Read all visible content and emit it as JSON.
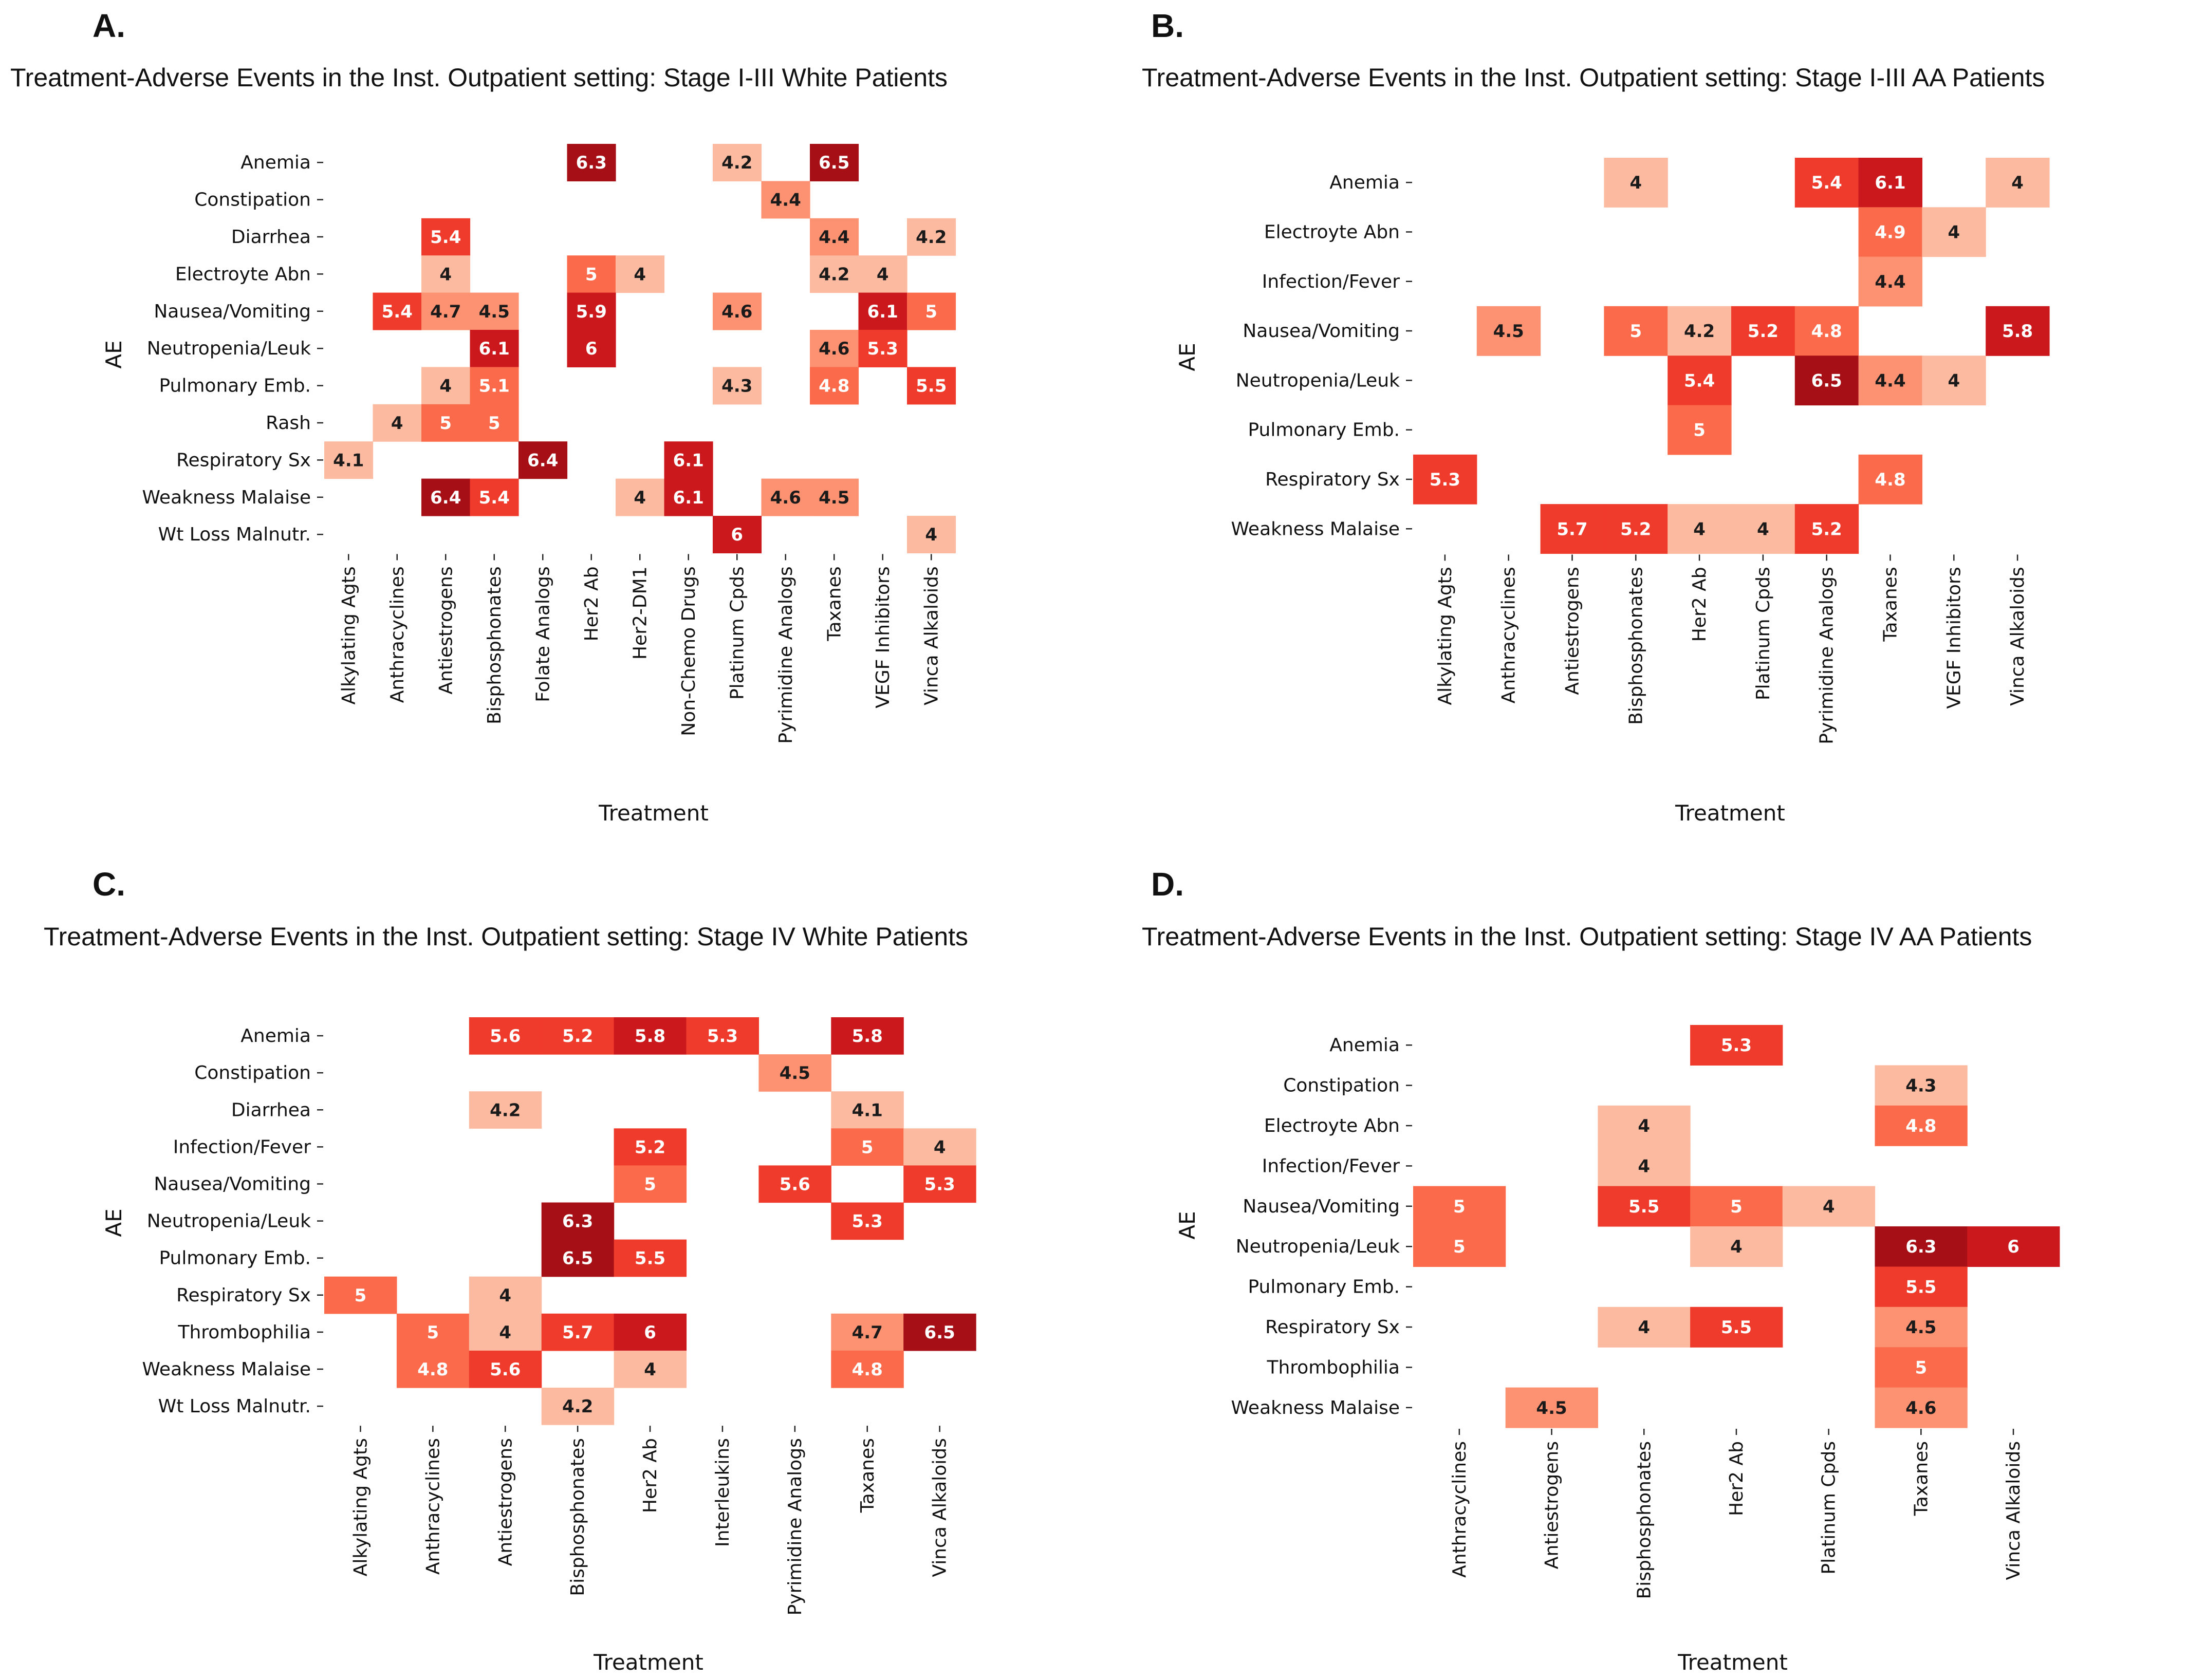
{
  "figure": {
    "colors": {
      "scale": [
        "#fcbba1",
        "#fc9272",
        "#fb6a4a",
        "#ef3b2c",
        "#cb181d",
        "#a50f15"
      ],
      "light_text": "#ffffff",
      "dark_text": "#1a1a1a"
    }
  },
  "chart_data": [
    {
      "panel": "A.",
      "type": "heatmap",
      "title": "Treatment-Adverse Events in the Inst. Outpatient setting: Stage I-III White Patients",
      "xlabel": "Treatment",
      "ylabel": "AE",
      "rows": [
        "Anemia",
        "Constipation",
        "Diarrhea",
        "Electroyte Abn",
        "Nausea/Vomiting",
        "Neutropenia/Leuk",
        "Pulmonary Emb.",
        "Rash",
        "Respiratory Sx",
        "Weakness Malaise",
        "Wt Loss Malnutr."
      ],
      "cols": [
        "Alkylating Agts",
        "Anthracyclines",
        "Antiestrogens",
        "Bisphosphonates",
        "Folate Analogs",
        "Her2 Ab",
        "Her2-DM1",
        "Non-Chemo Drugs",
        "Platinum Cpds",
        "Pyrimidine Analogs",
        "Taxanes",
        "VEGF Inhibitors",
        "Vinca Alkaloids"
      ],
      "values": [
        [
          null,
          null,
          null,
          null,
          null,
          6.3,
          null,
          null,
          4.2,
          null,
          6.5,
          null,
          null
        ],
        [
          null,
          null,
          null,
          null,
          null,
          null,
          null,
          null,
          null,
          4.4,
          null,
          null,
          null
        ],
        [
          null,
          null,
          5.4,
          null,
          null,
          null,
          null,
          null,
          null,
          null,
          4.4,
          null,
          4.2
        ],
        [
          null,
          null,
          4,
          null,
          null,
          5,
          4,
          null,
          null,
          null,
          4.2,
          4,
          null
        ],
        [
          null,
          5.4,
          4.7,
          4.5,
          null,
          5.9,
          null,
          null,
          4.6,
          null,
          null,
          6.1,
          5
        ],
        [
          null,
          null,
          null,
          6.1,
          null,
          6,
          null,
          null,
          null,
          null,
          4.6,
          5.3,
          null
        ],
        [
          null,
          null,
          4,
          5.1,
          null,
          null,
          null,
          null,
          4.3,
          null,
          4.8,
          null,
          5.5
        ],
        [
          null,
          4,
          5,
          5,
          null,
          null,
          null,
          null,
          null,
          null,
          null,
          null,
          null
        ],
        [
          4.1,
          null,
          null,
          null,
          6.4,
          null,
          null,
          6.1,
          null,
          null,
          null,
          null,
          null
        ],
        [
          null,
          null,
          6.4,
          5.4,
          null,
          null,
          4,
          6.1,
          null,
          4.6,
          4.5,
          null,
          null
        ],
        [
          null,
          null,
          null,
          null,
          null,
          null,
          null,
          null,
          6,
          null,
          null,
          null,
          4
        ]
      ]
    },
    {
      "panel": "B.",
      "type": "heatmap",
      "title": "Treatment-Adverse Events in the Inst. Outpatient setting: Stage I-III AA Patients",
      "xlabel": "Treatment",
      "ylabel": "AE",
      "rows": [
        "Anemia",
        "Electroyte Abn",
        "Infection/Fever",
        "Nausea/Vomiting",
        "Neutropenia/Leuk",
        "Pulmonary Emb.",
        "Respiratory Sx",
        "Weakness Malaise"
      ],
      "cols": [
        "Alkylating Agts",
        "Anthracyclines",
        "Antiestrogens",
        "Bisphosphonates",
        "Her2 Ab",
        "Platinum Cpds",
        "Pyrimidine Analogs",
        "Taxanes",
        "VEGF Inhibitors",
        "Vinca Alkaloids"
      ],
      "values": [
        [
          null,
          null,
          null,
          4,
          null,
          null,
          5.4,
          6.1,
          null,
          4
        ],
        [
          null,
          null,
          null,
          null,
          null,
          null,
          null,
          4.9,
          4,
          null
        ],
        [
          null,
          null,
          null,
          null,
          null,
          null,
          null,
          4.4,
          null,
          null
        ],
        [
          null,
          4.5,
          null,
          5,
          4.2,
          5.2,
          4.8,
          null,
          null,
          5.8
        ],
        [
          null,
          null,
          null,
          null,
          5.4,
          null,
          6.5,
          4.4,
          4,
          null
        ],
        [
          null,
          null,
          null,
          null,
          5,
          null,
          null,
          null,
          null,
          null
        ],
        [
          5.3,
          null,
          null,
          null,
          null,
          null,
          null,
          4.8,
          null,
          null
        ],
        [
          null,
          null,
          5.7,
          5.2,
          4,
          4,
          5.2,
          null,
          null,
          null
        ]
      ]
    },
    {
      "panel": "C.",
      "type": "heatmap",
      "title": "Treatment-Adverse Events in the Inst. Outpatient setting: Stage IV White Patients",
      "xlabel": "Treatment",
      "ylabel": "AE",
      "rows": [
        "Anemia",
        "Constipation",
        "Diarrhea",
        "Infection/Fever",
        "Nausea/Vomiting",
        "Neutropenia/Leuk",
        "Pulmonary Emb.",
        "Respiratory Sx",
        "Thrombophilia",
        "Weakness Malaise",
        "Wt Loss Malnutr."
      ],
      "cols": [
        "Alkylating Agts",
        "Anthracyclines",
        "Antiestrogens",
        "Bisphosphonates",
        "Her2 Ab",
        "Interleukins",
        "Pyrimidine Analogs",
        "Taxanes",
        "Vinca Alkaloids"
      ],
      "values": [
        [
          null,
          null,
          5.6,
          5.2,
          5.8,
          5.3,
          null,
          5.8,
          null
        ],
        [
          null,
          null,
          null,
          null,
          null,
          null,
          4.5,
          null,
          null
        ],
        [
          null,
          null,
          4.2,
          null,
          null,
          null,
          null,
          4.1,
          null
        ],
        [
          null,
          null,
          null,
          null,
          5.2,
          null,
          null,
          5,
          4
        ],
        [
          null,
          null,
          null,
          null,
          5,
          null,
          5.6,
          null,
          5.3
        ],
        [
          null,
          null,
          null,
          6.3,
          null,
          null,
          null,
          5.3,
          null
        ],
        [
          null,
          null,
          null,
          6.5,
          5.5,
          null,
          null,
          null,
          null
        ],
        [
          5,
          null,
          4,
          null,
          null,
          null,
          null,
          null,
          null
        ],
        [
          null,
          5,
          4,
          5.7,
          6,
          null,
          null,
          4.7,
          6.5
        ],
        [
          null,
          4.8,
          5.6,
          null,
          4,
          null,
          null,
          4.8,
          null
        ],
        [
          null,
          null,
          null,
          4.2,
          null,
          null,
          null,
          null,
          null
        ]
      ]
    },
    {
      "panel": "D.",
      "type": "heatmap",
      "title": "Treatment-Adverse Events in the Inst. Outpatient setting: Stage IV AA Patients",
      "xlabel": "Treatment",
      "ylabel": "AE",
      "rows": [
        "Anemia",
        "Constipation",
        "Electroyte Abn",
        "Infection/Fever",
        "Nausea/Vomiting",
        "Neutropenia/Leuk",
        "Pulmonary Emb.",
        "Respiratory Sx",
        "Thrombophilia",
        "Weakness Malaise"
      ],
      "cols": [
        "Anthracyclines",
        "Antiestrogens",
        "Bisphosphonates",
        "Her2 Ab",
        "Platinum Cpds",
        "Taxanes",
        "Vinca Alkaloids"
      ],
      "values": [
        [
          null,
          null,
          null,
          5.3,
          null,
          null,
          null
        ],
        [
          null,
          null,
          null,
          null,
          null,
          4.3,
          null
        ],
        [
          null,
          null,
          4,
          null,
          null,
          4.8,
          null
        ],
        [
          null,
          null,
          4,
          null,
          null,
          null,
          null
        ],
        [
          5,
          null,
          5.5,
          5,
          4,
          null,
          null
        ],
        [
          5,
          null,
          null,
          4,
          null,
          6.3,
          6
        ],
        [
          null,
          null,
          null,
          null,
          null,
          5.5,
          null
        ],
        [
          null,
          null,
          4,
          5.5,
          null,
          4.5,
          null
        ],
        [
          null,
          null,
          null,
          null,
          null,
          5,
          null
        ],
        [
          null,
          4.5,
          null,
          null,
          null,
          4.6,
          null
        ]
      ]
    }
  ]
}
